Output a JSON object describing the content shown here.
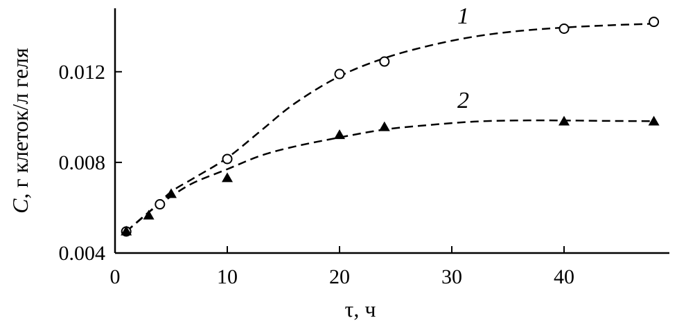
{
  "chart_data": {
    "type": "scatter",
    "xlabel_symbol": "τ",
    "xlabel_unit": ", ч",
    "ylabel_symbol": "C",
    "ylabel_unit": ", г клеток/л геля",
    "xlim": [
      0,
      50
    ],
    "ylim": [
      0.004,
      0.0148
    ],
    "xticks": [
      0,
      10,
      20,
      30,
      40
    ],
    "xtick_labels": [
      "0",
      "10",
      "20",
      "30",
      "40"
    ],
    "yticks": [
      0.004,
      0.008,
      0.012
    ],
    "ytick_labels": [
      "0.004",
      "0.008",
      "0.012"
    ],
    "grid": false,
    "series": [
      {
        "name": "1",
        "marker": "open-circle",
        "line_style": "dashed",
        "x": [
          1,
          4,
          10,
          20,
          24,
          40,
          48
        ],
        "y": [
          0.00495,
          0.00615,
          0.00815,
          0.0119,
          0.01245,
          0.0139,
          0.0142
        ]
      },
      {
        "name": "2",
        "marker": "filled-triangle",
        "line_style": "dashed",
        "x": [
          1,
          3,
          5,
          10,
          20,
          24,
          40,
          48
        ],
        "y": [
          0.00495,
          0.00565,
          0.0066,
          0.0073,
          0.0092,
          0.00955,
          0.0098,
          0.0098
        ]
      }
    ],
    "curves": [
      {
        "series": "1",
        "x": [
          1,
          3,
          5,
          7,
          10,
          13,
          16,
          20,
          24,
          28,
          32,
          36,
          40,
          44,
          48
        ],
        "y": [
          0.00495,
          0.0058,
          0.0067,
          0.0073,
          0.0082,
          0.0094,
          0.0106,
          0.0118,
          0.0126,
          0.01315,
          0.01355,
          0.0138,
          0.01395,
          0.01405,
          0.01412
        ]
      },
      {
        "series": "2",
        "x": [
          1,
          3,
          5,
          7,
          10,
          13,
          16,
          20,
          24,
          28,
          32,
          36,
          40,
          44,
          48
        ],
        "y": [
          0.00495,
          0.0058,
          0.0065,
          0.0071,
          0.0077,
          0.0083,
          0.0087,
          0.0091,
          0.00945,
          0.00965,
          0.0098,
          0.00985,
          0.00985,
          0.00983,
          0.00982
        ]
      }
    ]
  }
}
